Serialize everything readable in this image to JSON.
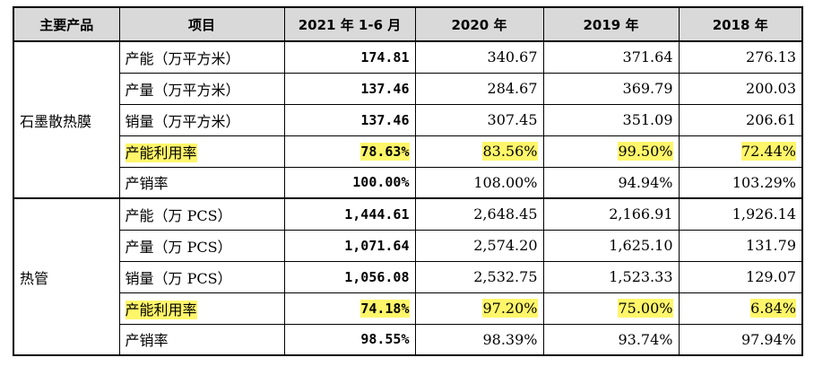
{
  "headers": [
    "主要产品",
    "项目",
    "2021 年 1-6 月",
    "2020 年",
    "2019 年",
    "2018 年"
  ],
  "groups": [
    {
      "product": "石墨散热膜",
      "rows": [
        {
          "item": "产能（万平方米）",
          "v2021": "174.81",
          "v2020": "340.67",
          "v2019": "371.64",
          "v2018": "276.13",
          "highlight": false
        },
        {
          "item": "产量（万平方米）",
          "v2021": "137.46",
          "v2020": "284.67",
          "v2019": "369.79",
          "v2018": "200.03",
          "highlight": false
        },
        {
          "item": "销量（万平方米）",
          "v2021": "137.46",
          "v2020": "307.45",
          "v2019": "351.09",
          "v2018": "206.61",
          "highlight": false
        },
        {
          "item": "产能利用率",
          "v2021": "78.63%",
          "v2020": "83.56%",
          "v2019": "99.50%",
          "v2018": "72.44%",
          "highlight": true
        },
        {
          "item": "产销率",
          "v2021": "100.00%",
          "v2020": "108.00%",
          "v2019": "94.94%",
          "v2018": "103.29%",
          "highlight": false
        }
      ]
    },
    {
      "product": "热管",
      "rows": [
        {
          "item": "产能（万 PCS）",
          "v2021": "1,444.61",
          "v2020": "2,648.45",
          "v2019": "2,166.91",
          "v2018": "1,926.14",
          "highlight": false
        },
        {
          "item": "产量（万 PCS）",
          "v2021": "1,071.64",
          "v2020": "2,574.20",
          "v2019": "1,625.10",
          "v2018": "131.79",
          "highlight": false
        },
        {
          "item": "销量（万 PCS）",
          "v2021": "1,056.08",
          "v2020": "2,532.75",
          "v2019": "1,523.33",
          "v2018": "129.07",
          "highlight": false
        },
        {
          "item": "产能利用率",
          "v2021": "74.18%",
          "v2020": "97.20%",
          "v2019": "75.00%",
          "v2018": "6.84%",
          "highlight": true
        },
        {
          "item": "产销率",
          "v2021": "98.55%",
          "v2020": "98.39%",
          "v2019": "93.74%",
          "v2018": "97.94%",
          "highlight": false
        }
      ]
    }
  ],
  "highlight_color": "#fff66a"
}
